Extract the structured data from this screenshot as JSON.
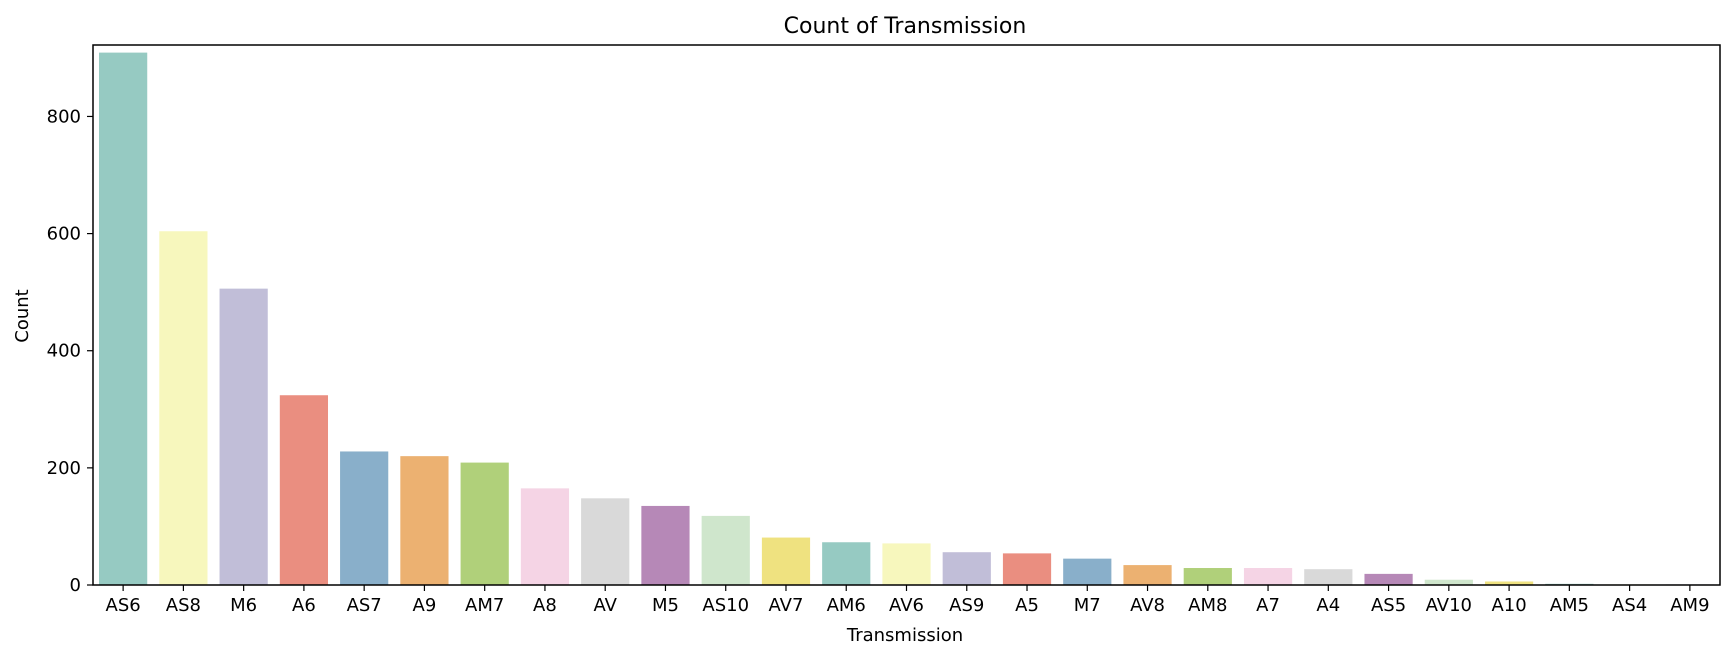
{
  "chart_data": {
    "type": "bar",
    "title": "Count of Transmission",
    "xlabel": "Transmission",
    "ylabel": "Count",
    "ylim": [
      0,
      922
    ],
    "yticks": [
      0,
      200,
      400,
      600,
      800
    ],
    "ytick_labels": [
      "0",
      "200",
      "400",
      "600",
      "800"
    ],
    "grid": false,
    "categories": [
      "AS6",
      "AS8",
      "M6",
      "A6",
      "AS7",
      "A9",
      "AM7",
      "A8",
      "AV",
      "M5",
      "AS10",
      "AV7",
      "AM6",
      "AV6",
      "AS9",
      "A5",
      "M7",
      "AV8",
      "AM8",
      "A7",
      "A4",
      "AS5",
      "AV10",
      "A10",
      "AM5",
      "AS4",
      "AM9"
    ],
    "values": [
      909,
      604,
      506,
      324,
      228,
      220,
      209,
      165,
      148,
      135,
      118,
      81,
      73,
      71,
      56,
      54,
      45,
      34,
      29,
      29,
      27,
      19,
      9,
      6,
      2,
      1,
      1
    ],
    "colors": [
      "#96cac2",
      "#f7f7bd",
      "#c1bed8",
      "#ea8e80",
      "#89afca",
      "#ecb171",
      "#b0d07a",
      "#f5d4e5",
      "#d9d9d9",
      "#b688b7",
      "#cfe6cc",
      "#efe280",
      "#96cac2",
      "#f7f7bd",
      "#c1bed8",
      "#ea8e80",
      "#89afca",
      "#ecb171",
      "#b0d07a",
      "#f5d4e5",
      "#d9d9d9",
      "#b688b7",
      "#cfe6cc",
      "#efe280",
      "#96cac2",
      "#f7f7bd",
      "#c1bed8"
    ]
  }
}
